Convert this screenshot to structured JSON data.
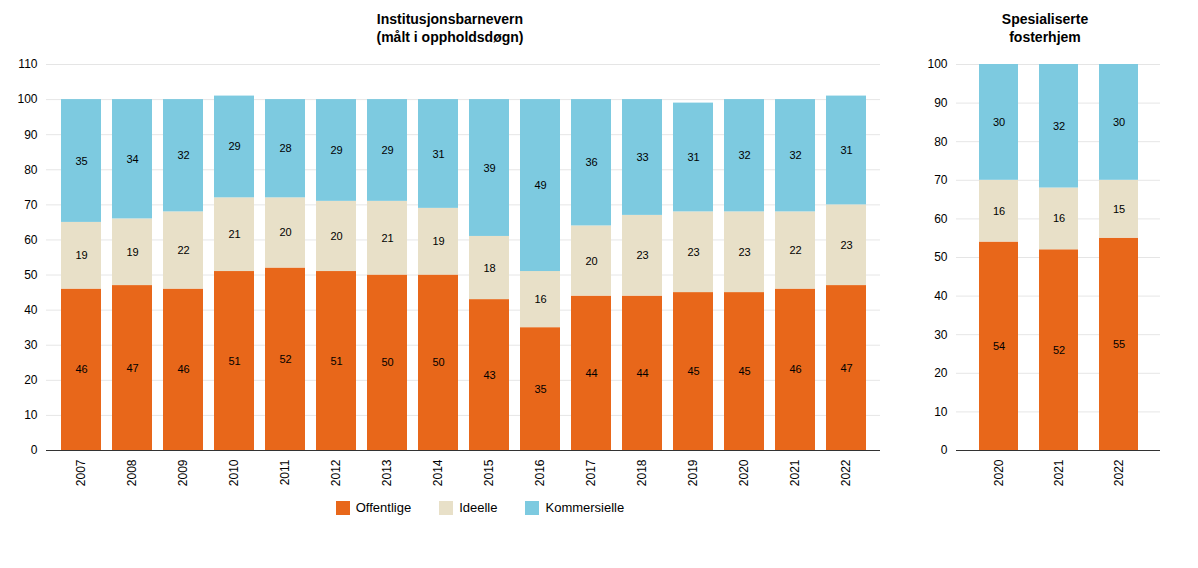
{
  "chart_data": [
    {
      "type": "bar",
      "title": "Institusjonsbarnevern\n(målt i oppholdsdøgn)",
      "categories": [
        "2007",
        "2008",
        "2009",
        "2010",
        "2011",
        "2012",
        "2013",
        "2014",
        "2015",
        "2016",
        "2017",
        "2018",
        "2019",
        "2020",
        "2021",
        "2022"
      ],
      "series": [
        {
          "name": "Offentlige",
          "color": "#E8671A",
          "values": [
            46,
            47,
            46,
            51,
            52,
            51,
            50,
            50,
            43,
            35,
            44,
            44,
            45,
            45,
            46,
            47
          ]
        },
        {
          "name": "Ideelle",
          "color": "#E8E0C8",
          "values": [
            19,
            19,
            22,
            21,
            20,
            20,
            21,
            19,
            18,
            16,
            20,
            23,
            23,
            23,
            22,
            23
          ]
        },
        {
          "name": "Kommersielle",
          "color": "#7DCAE0",
          "values": [
            35,
            34,
            32,
            29,
            28,
            29,
            29,
            31,
            39,
            49,
            36,
            33,
            31,
            32,
            32,
            31
          ]
        }
      ],
      "stacked": true,
      "data_labels": true,
      "grid": true,
      "legend": "bottom",
      "ylim": [
        0,
        110
      ],
      "yticks": [
        0,
        10,
        20,
        30,
        40,
        50,
        60,
        70,
        80,
        90,
        100,
        110
      ]
    },
    {
      "type": "bar",
      "title": "Spesialiserte\nfosterhjem",
      "categories": [
        "2020",
        "2021",
        "2022"
      ],
      "series": [
        {
          "name": "Offentlige",
          "color": "#E8671A",
          "values": [
            54,
            52,
            55
          ]
        },
        {
          "name": "Ideelle",
          "color": "#E8E0C8",
          "values": [
            16,
            16,
            15
          ]
        },
        {
          "name": "Kommersielle",
          "color": "#7DCAE0",
          "values": [
            30,
            32,
            30
          ]
        }
      ],
      "stacked": true,
      "data_labels": true,
      "grid": true,
      "legend": "bottom",
      "ylim": [
        0,
        100
      ],
      "yticks": [
        0,
        10,
        20,
        30,
        40,
        50,
        60,
        70,
        80,
        90,
        100
      ]
    }
  ]
}
